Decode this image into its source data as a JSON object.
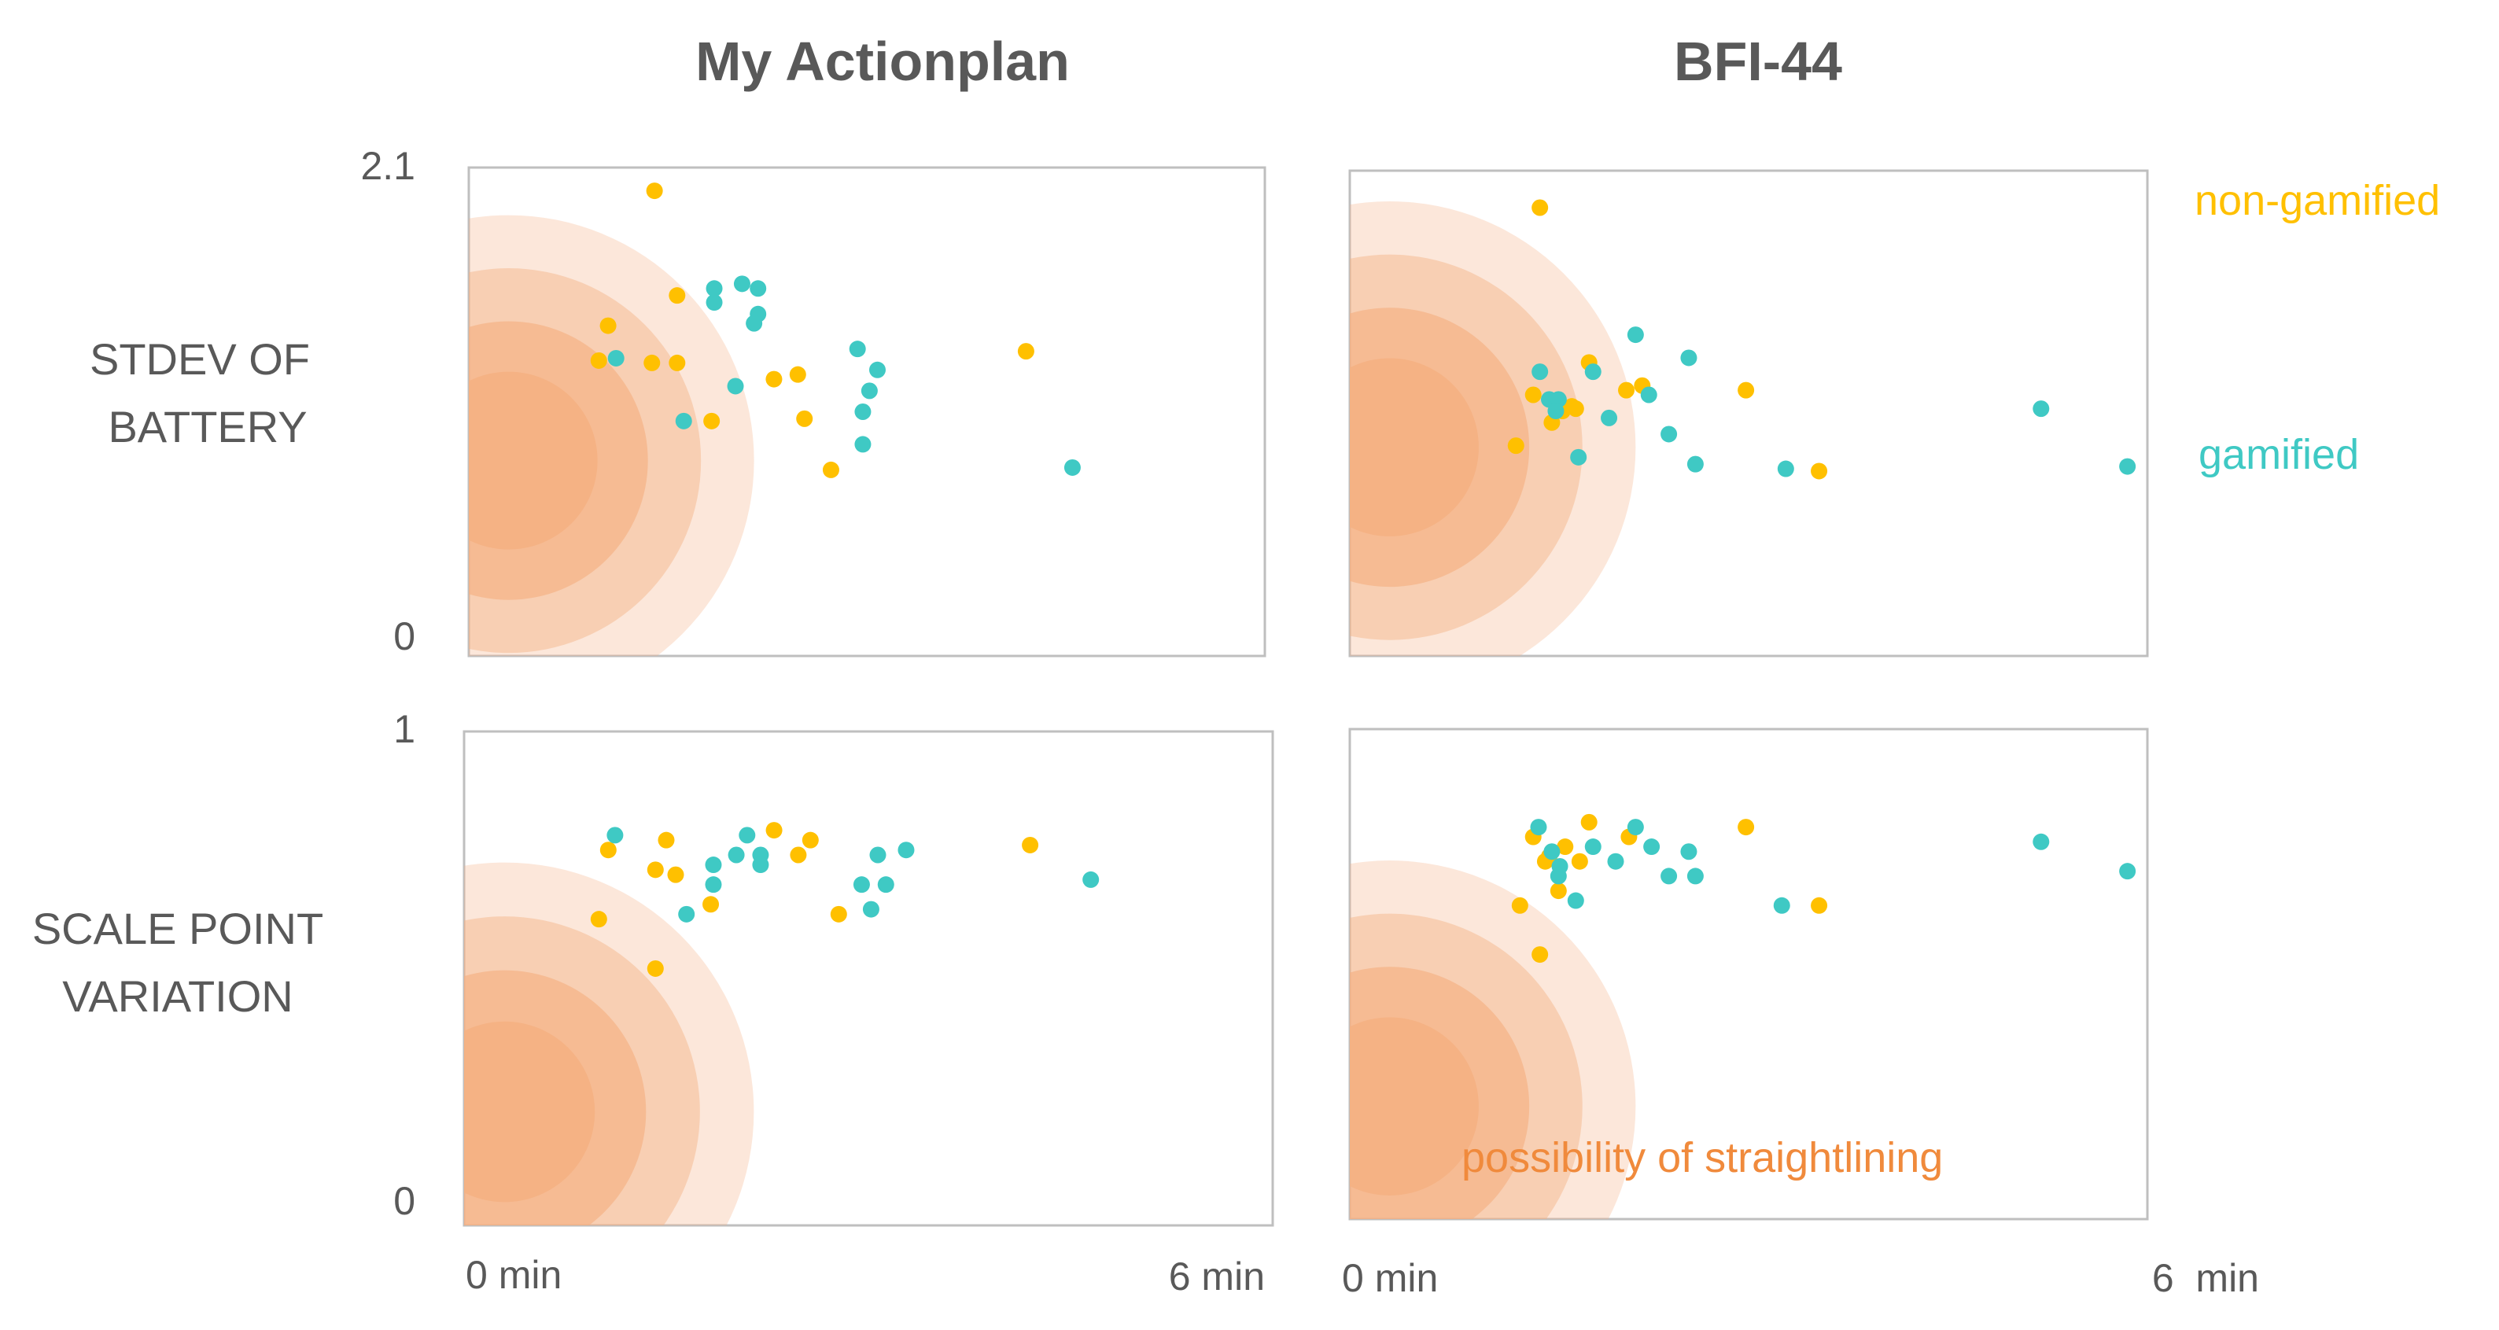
{
  "colors": {
    "non_gamified": "#FFC000",
    "gamified": "#3FC9C4",
    "straightlining": "#F4B183",
    "straightlining_text": "#F08A3C",
    "text": "#595959",
    "frame": "#BFBFBF"
  },
  "chart_data": {
    "type": "scatter",
    "columns": [
      "My Actionplan",
      "BFI-44"
    ],
    "rows": [
      {
        "label": [
          "STDEV OF",
          "BATTERY"
        ],
        "ylim": [
          0,
          2.1
        ],
        "y_ticks": [
          "2.1",
          "0"
        ]
      },
      {
        "label": [
          "SCALE POINT",
          "VARIATION"
        ],
        "ylim": [
          0,
          1
        ],
        "y_ticks": [
          "1",
          "0"
        ]
      }
    ],
    "xlim": [
      0,
      6
    ],
    "x_ticks": [
      {
        "col": 0,
        "left": "0 min",
        "right": "6 min"
      },
      {
        "col": 1,
        "left": "0 min",
        "right": "6  min"
      }
    ],
    "legend": [
      {
        "name": "non-gamified",
        "color_key": "non_gamified",
        "placement": "top-right"
      },
      {
        "name": "gamified",
        "color_key": "gamified",
        "placement": "right"
      }
    ],
    "annotation": "possibility of straightlining",
    "straightlining_zone": {
      "x_center": 0.3,
      "radii_x": [
        0.67,
        1.05,
        1.45,
        1.85
      ]
    },
    "panels": [
      {
        "row": 0,
        "col": 0,
        "zone_y_center": 0.4,
        "series": [
          {
            "name": "non-gamified",
            "points": [
              [
                1.4,
                2.0
              ],
              [
                1.57,
                1.55
              ],
              [
                1.05,
                1.42
              ],
              [
                0.98,
                1.27
              ],
              [
                1.38,
                1.26
              ],
              [
                1.57,
                1.26
              ],
              [
                1.83,
                1.01
              ],
              [
                2.3,
                1.19
              ],
              [
                2.48,
                1.21
              ],
              [
                2.53,
                1.02
              ],
              [
                2.73,
                0.8
              ],
              [
                4.2,
                1.31
              ]
            ]
          },
          {
            "name": "gamified",
            "points": [
              [
                1.11,
                1.28
              ],
              [
                1.85,
                1.58
              ],
              [
                1.85,
                1.52
              ],
              [
                2.06,
                1.6
              ],
              [
                2.18,
                1.58
              ],
              [
                2.18,
                1.47
              ],
              [
                2.15,
                1.43
              ],
              [
                2.01,
                1.16
              ],
              [
                1.62,
                1.01
              ],
              [
                2.93,
                1.32
              ],
              [
                3.08,
                1.23
              ],
              [
                3.02,
                1.14
              ],
              [
                2.97,
                1.05
              ],
              [
                2.97,
                0.91
              ],
              [
                4.55,
                0.81
              ]
            ]
          }
        ]
      },
      {
        "row": 0,
        "col": 1,
        "zone_y_center": 0.43,
        "series": [
          {
            "name": "non-gamified",
            "points": [
              [
                1.43,
                1.94
              ],
              [
                1.38,
                1.13
              ],
              [
                1.25,
                0.91
              ],
              [
                1.8,
                1.27
              ],
              [
                1.52,
                1.01
              ],
              [
                1.6,
                1.06
              ],
              [
                1.67,
                1.08
              ],
              [
                1.7,
                1.07
              ],
              [
                2.08,
                1.15
              ],
              [
                2.2,
                1.17
              ],
              [
                2.98,
                1.15
              ],
              [
                3.53,
                0.8
              ]
            ]
          },
          {
            "name": "gamified",
            "points": [
              [
                2.15,
                1.39
              ],
              [
                2.55,
                1.29
              ],
              [
                1.43,
                1.23
              ],
              [
                1.83,
                1.23
              ],
              [
                1.5,
                1.11
              ],
              [
                1.57,
                1.11
              ],
              [
                1.55,
                1.06
              ],
              [
                1.95,
                1.03
              ],
              [
                2.25,
                1.13
              ],
              [
                2.4,
                0.96
              ],
              [
                1.72,
                0.86
              ],
              [
                2.6,
                0.83
              ],
              [
                3.28,
                0.81
              ],
              [
                5.2,
                1.07
              ],
              [
                5.85,
                0.82
              ]
            ]
          }
        ]
      },
      {
        "row": 1,
        "col": 0,
        "zone_y_center": 0.23,
        "series": [
          {
            "name": "non-gamified",
            "points": [
              [
                1.07,
                0.76
              ],
              [
                1.5,
                0.78
              ],
              [
                1.42,
                0.72
              ],
              [
                1.57,
                0.71
              ],
              [
                1.83,
                0.65
              ],
              [
                2.3,
                0.8
              ],
              [
                2.48,
                0.75
              ],
              [
                2.57,
                0.78
              ],
              [
                2.78,
                0.63
              ],
              [
                1.42,
                0.52
              ],
              [
                1.0,
                0.62
              ],
              [
                4.2,
                0.77
              ]
            ]
          },
          {
            "name": "gamified",
            "points": [
              [
                1.12,
                0.79
              ],
              [
                2.1,
                0.79
              ],
              [
                2.02,
                0.75
              ],
              [
                2.2,
                0.75
              ],
              [
                2.2,
                0.73
              ],
              [
                1.85,
                0.73
              ],
              [
                1.85,
                0.69
              ],
              [
                1.65,
                0.63
              ],
              [
                3.07,
                0.75
              ],
              [
                3.28,
                0.76
              ],
              [
                2.95,
                0.69
              ],
              [
                3.13,
                0.69
              ],
              [
                3.02,
                0.64
              ],
              [
                4.65,
                0.7
              ]
            ]
          }
        ]
      },
      {
        "row": 1,
        "col": 1,
        "zone_y_center": 0.23,
        "series": [
          {
            "name": "non-gamified",
            "points": [
              [
                1.38,
                0.78
              ],
              [
                1.8,
                0.81
              ],
              [
                2.1,
                0.78
              ],
              [
                1.5,
                0.74
              ],
              [
                1.62,
                0.76
              ],
              [
                1.73,
                0.73
              ],
              [
                1.57,
                0.67
              ],
              [
                1.28,
                0.64
              ],
              [
                1.43,
                0.54
              ],
              [
                2.98,
                0.8
              ],
              [
                3.53,
                0.64
              ],
              [
                1.47,
                0.73
              ]
            ]
          },
          {
            "name": "gamified",
            "points": [
              [
                1.42,
                0.8
              ],
              [
                1.52,
                0.75
              ],
              [
                1.58,
                0.72
              ],
              [
                1.57,
                0.7
              ],
              [
                1.83,
                0.76
              ],
              [
                2.0,
                0.73
              ],
              [
                2.15,
                0.8
              ],
              [
                2.27,
                0.76
              ],
              [
                2.55,
                0.75
              ],
              [
                2.4,
                0.7
              ],
              [
                2.6,
                0.7
              ],
              [
                1.7,
                0.65
              ],
              [
                3.25,
                0.64
              ],
              [
                5.2,
                0.77
              ],
              [
                5.85,
                0.71
              ]
            ]
          }
        ]
      }
    ]
  }
}
